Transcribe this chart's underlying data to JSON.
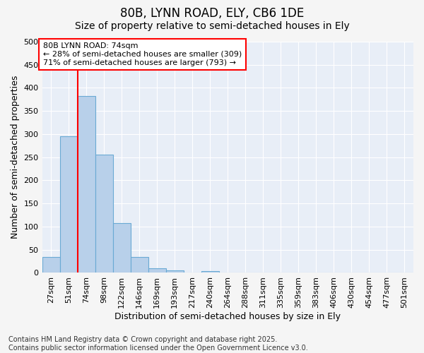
{
  "title": "80B, LYNN ROAD, ELY, CB6 1DE",
  "subtitle": "Size of property relative to semi-detached houses in Ely",
  "xlabel": "Distribution of semi-detached houses by size in Ely",
  "ylabel": "Number of semi-detached properties",
  "categories": [
    "27sqm",
    "51sqm",
    "74sqm",
    "98sqm",
    "122sqm",
    "146sqm",
    "169sqm",
    "193sqm",
    "217sqm",
    "240sqm",
    "264sqm",
    "288sqm",
    "311sqm",
    "335sqm",
    "359sqm",
    "383sqm",
    "406sqm",
    "430sqm",
    "454sqm",
    "477sqm",
    "501sqm"
  ],
  "values": [
    35,
    295,
    383,
    255,
    108,
    35,
    10,
    6,
    0,
    4,
    0,
    0,
    0,
    0,
    0,
    0,
    0,
    0,
    0,
    0,
    0
  ],
  "bar_color": "#b8d0ea",
  "bar_edge_color": "#6aaad4",
  "property_bar_index": 2,
  "annotation_text_line1": "80B LYNN ROAD: 74sqm",
  "annotation_text_line2": "← 28% of semi-detached houses are smaller (309)",
  "annotation_text_line3": "71% of semi-detached houses are larger (793) →",
  "ylim": [
    0,
    500
  ],
  "yticks": [
    0,
    50,
    100,
    150,
    200,
    250,
    300,
    350,
    400,
    450,
    500
  ],
  "fig_bg": "#f5f5f5",
  "plot_bg": "#e8eef7",
  "grid_color": "white",
  "footer": "Contains HM Land Registry data © Crown copyright and database right 2025.\nContains public sector information licensed under the Open Government Licence v3.0.",
  "title_fontsize": 12,
  "subtitle_fontsize": 10,
  "label_fontsize": 9,
  "tick_fontsize": 8,
  "footer_fontsize": 7,
  "annot_fontsize": 8
}
